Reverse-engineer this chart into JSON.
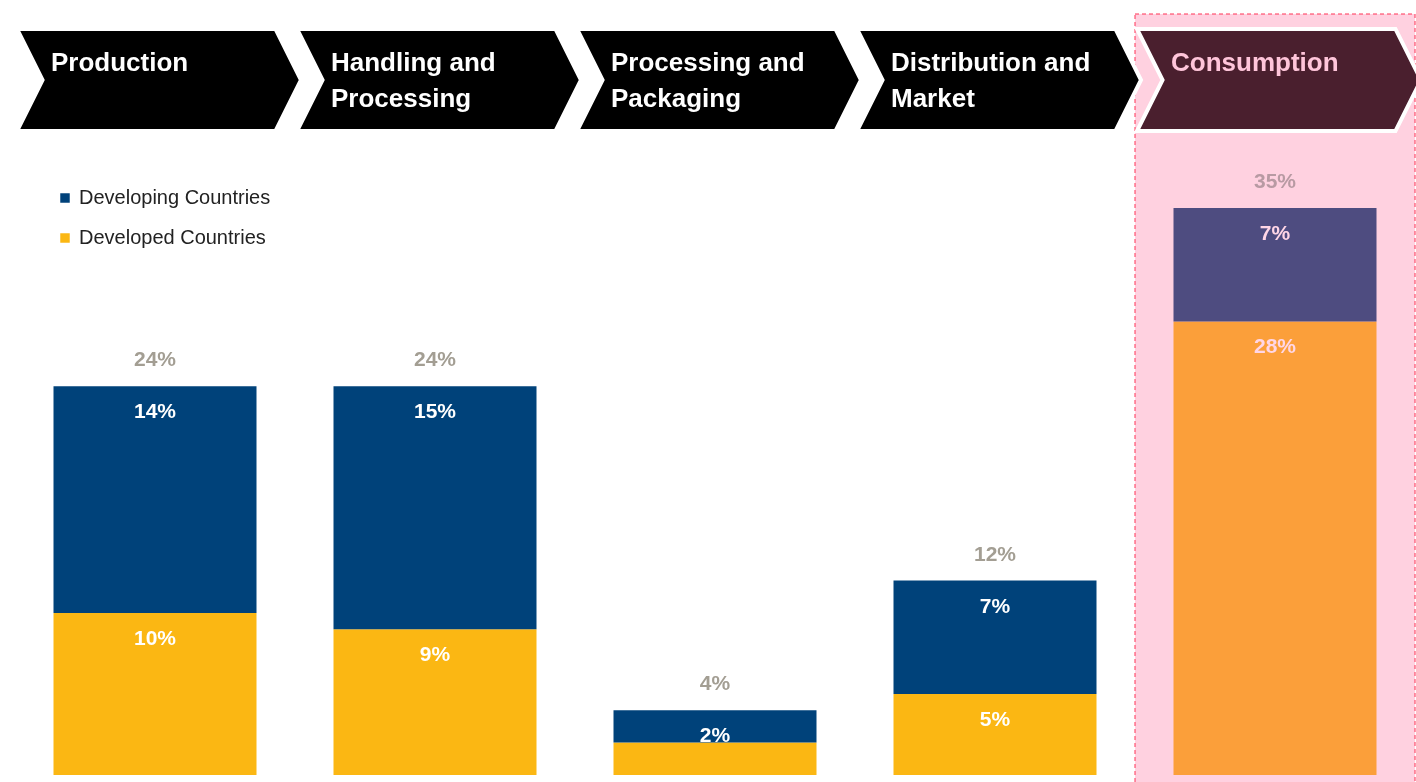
{
  "chart_data": {
    "type": "bar",
    "stacked": true,
    "categories": [
      "Production",
      "Handling and Processing",
      "Processing and Packaging",
      "Distribution and Market",
      "Consumption"
    ],
    "series": [
      {
        "name": "Developed Countries",
        "color": "#fbb713",
        "colors": [
          "#fbb713",
          "#fbb713",
          "#fbb713",
          "#fbb713",
          "#fb9f3a"
        ],
        "values": [
          10,
          9,
          2,
          5,
          28
        ],
        "value_labels": [
          "10%",
          "9%",
          null,
          "5%",
          "28%"
        ]
      },
      {
        "name": "Developing Countries",
        "color": "#00427a",
        "colors": [
          "#00427a",
          "#00427a",
          "#00427a",
          "#00427a",
          "#4e4c80"
        ],
        "values": [
          14,
          15,
          2,
          7,
          7
        ],
        "value_labels": [
          "14%",
          "15%",
          "2%",
          "7%",
          "7%"
        ]
      }
    ],
    "totals": [
      "24%",
      "24%",
      "4%",
      "12%",
      "35%"
    ],
    "bands": [
      {
        "axis": "x",
        "from": "Consumption",
        "to": "Consumption",
        "color": "#ffd1e0"
      }
    ],
    "legend": "top left"
  }
}
